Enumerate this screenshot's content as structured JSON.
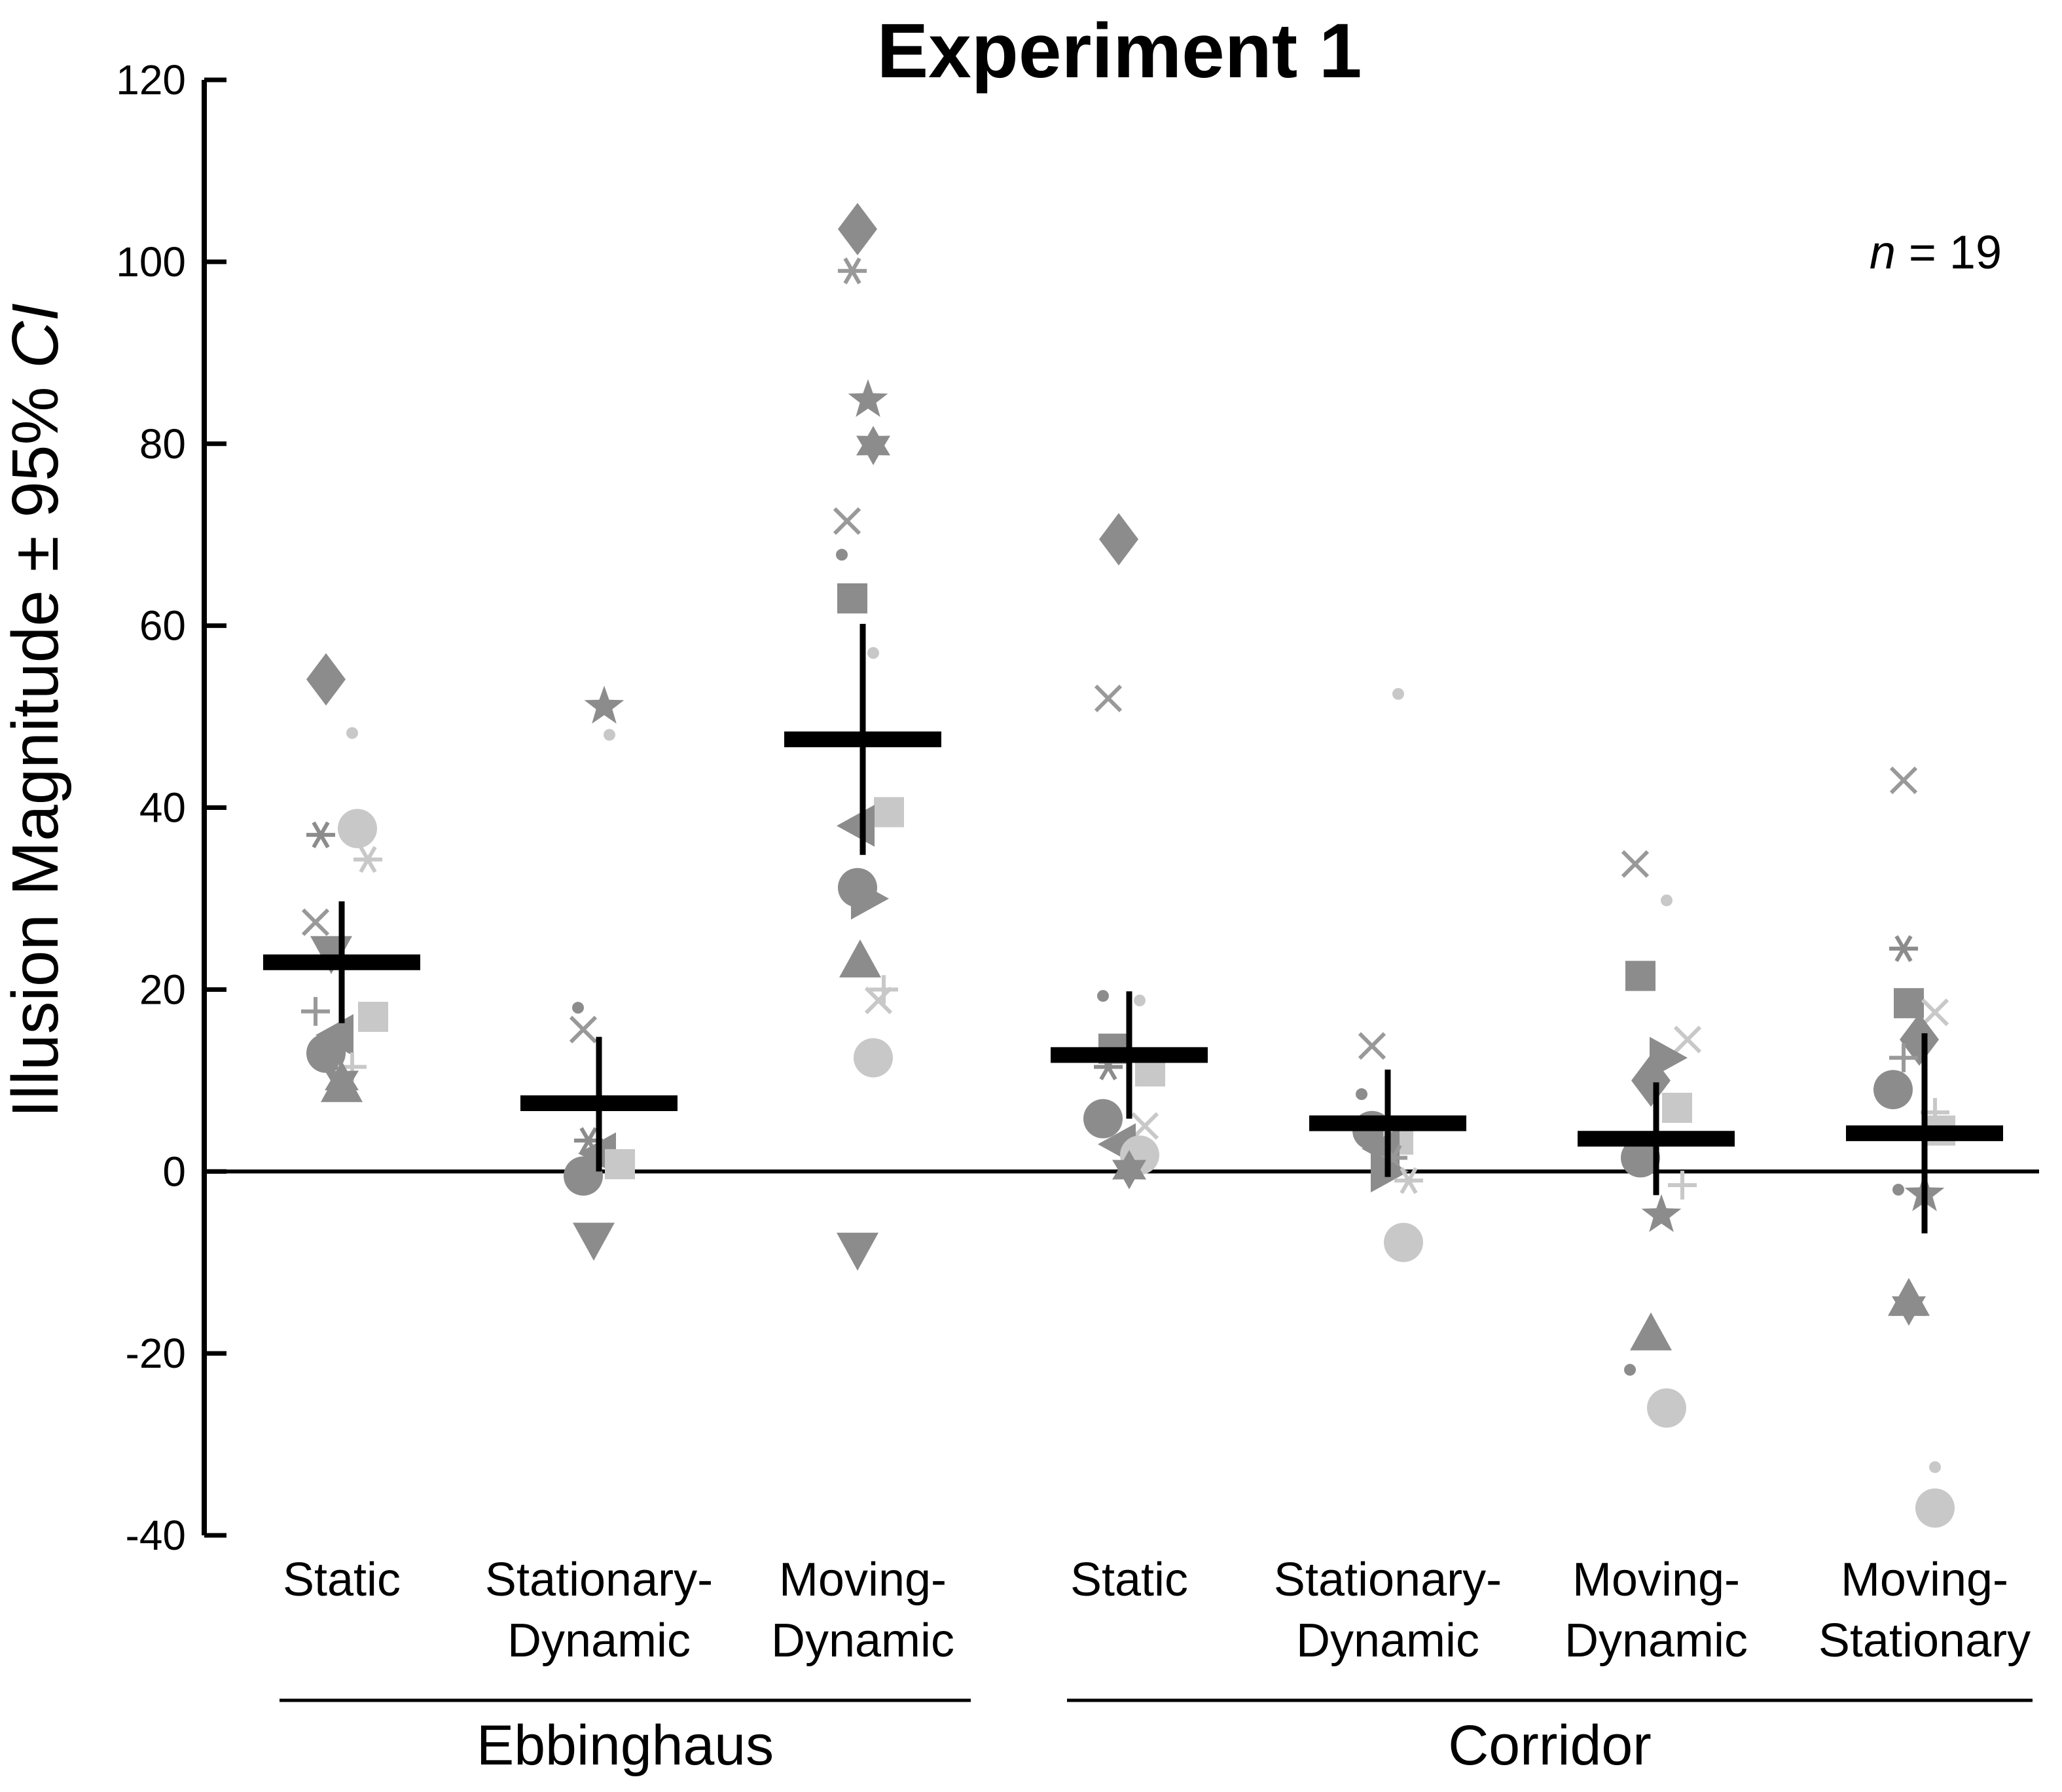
{
  "chart_data": {
    "type": "scatter",
    "title": "Experiment 1",
    "ylabel_main": "Illusion Magnitude ± 95% ",
    "ylabel_italic": "CI",
    "xlabel": "",
    "ylim": [
      -40,
      120
    ],
    "yticks": [
      120,
      100,
      80,
      60,
      40,
      20,
      0,
      -20,
      -40
    ],
    "annotation": {
      "prefix": "n",
      "value": " = 19"
    },
    "groups": [
      {
        "name": "Ebbinghaus",
        "categories": [
          0,
          1,
          2
        ]
      },
      {
        "name": "Corridor",
        "categories": [
          3,
          4,
          5,
          6
        ]
      }
    ],
    "categories": [
      {
        "line1": "Static",
        "line2": ""
      },
      {
        "line1": "Stationary-",
        "line2": "Dynamic"
      },
      {
        "line1": "Moving-",
        "line2": "Dynamic"
      },
      {
        "line1": "Static",
        "line2": ""
      },
      {
        "line1": "Stationary-",
        "line2": "Dynamic"
      },
      {
        "line1": "Moving-",
        "line2": "Dynamic"
      },
      {
        "line1": "Moving-",
        "line2": "Stationary"
      }
    ],
    "means": [
      {
        "category": 0,
        "mean": 23.0,
        "ci_low": 16.3,
        "ci_high": 29.7
      },
      {
        "category": 1,
        "mean": 7.5,
        "ci_low": 0.0,
        "ci_high": 14.8
      },
      {
        "category": 2,
        "mean": 47.5,
        "ci_low": 34.8,
        "ci_high": 60.2
      },
      {
        "category": 3,
        "mean": 12.8,
        "ci_low": 5.8,
        "ci_high": 19.8
      },
      {
        "category": 4,
        "mean": 5.3,
        "ci_low": -0.6,
        "ci_high": 11.2
      },
      {
        "category": 5,
        "mean": 3.6,
        "ci_low": -2.6,
        "ci_high": 9.8
      },
      {
        "category": 6,
        "mean": 4.2,
        "ci_low": -6.8,
        "ci_high": 15.2
      }
    ],
    "participants": [
      {
        "category": 0,
        "points": [
          {
            "s": "diamond",
            "v": 54.1,
            "dx": -0.06,
            "tone": "dark"
          },
          {
            "s": "dot",
            "v": 48.2,
            "dx": 0.04,
            "tone": "light"
          },
          {
            "s": "circle",
            "v": 37.7,
            "dx": 0.06,
            "tone": "light"
          },
          {
            "s": "asterisk",
            "v": 37.0,
            "dx": -0.08,
            "tone": "dark"
          },
          {
            "s": "asterisk",
            "v": 34.3,
            "dx": 0.1,
            "tone": "light"
          },
          {
            "s": "x",
            "v": 27.4,
            "dx": -0.1,
            "tone": "mid"
          },
          {
            "s": "triangle-down",
            "v": 24.0,
            "dx": -0.04,
            "tone": "dark"
          },
          {
            "s": "plus",
            "v": 17.6,
            "dx": -0.1,
            "tone": "mid"
          },
          {
            "s": "square",
            "v": 17.0,
            "dx": 0.12,
            "tone": "light"
          },
          {
            "s": "triangle-left",
            "v": 15.0,
            "dx": -0.02,
            "tone": "dark"
          },
          {
            "s": "circle",
            "v": 13.0,
            "dx": -0.06,
            "tone": "dark"
          },
          {
            "s": "plus",
            "v": 11.5,
            "dx": 0.04,
            "tone": "light"
          },
          {
            "s": "hexagram",
            "v": 10.0,
            "dx": 0.0,
            "tone": "dark"
          },
          {
            "s": "triangle-up",
            "v": 9.5,
            "dx": 0.0,
            "tone": "dark"
          }
        ]
      },
      {
        "category": 1,
        "points": [
          {
            "s": "pentagram",
            "v": 51.1,
            "dx": 0.02,
            "tone": "dark"
          },
          {
            "s": "dot",
            "v": 48.0,
            "dx": 0.04,
            "tone": "light"
          },
          {
            "s": "dot",
            "v": 18.0,
            "dx": -0.08,
            "tone": "dark"
          },
          {
            "s": "x",
            "v": 15.6,
            "dx": -0.06,
            "tone": "mid"
          },
          {
            "s": "asterisk",
            "v": 3.4,
            "dx": -0.04,
            "tone": "dark"
          },
          {
            "s": "triangle-left",
            "v": 2.0,
            "dx": 0.0,
            "tone": "dark"
          },
          {
            "s": "square",
            "v": 0.8,
            "dx": 0.08,
            "tone": "light"
          },
          {
            "s": "circle",
            "v": -0.5,
            "dx": -0.06,
            "tone": "dark"
          },
          {
            "s": "triangle-down",
            "v": -7.5,
            "dx": -0.02,
            "tone": "dark"
          }
        ]
      },
      {
        "category": 2,
        "points": [
          {
            "s": "diamond",
            "v": 103.6,
            "dx": -0.02,
            "tone": "dark"
          },
          {
            "s": "asterisk",
            "v": 99.0,
            "dx": -0.04,
            "tone": "mid"
          },
          {
            "s": "pentagram",
            "v": 84.8,
            "dx": 0.02,
            "tone": "dark"
          },
          {
            "s": "hexagram",
            "v": 79.8,
            "dx": 0.04,
            "tone": "dark"
          },
          {
            "s": "x",
            "v": 71.5,
            "dx": -0.06,
            "tone": "mid"
          },
          {
            "s": "dot",
            "v": 67.8,
            "dx": -0.08,
            "tone": "dark"
          },
          {
            "s": "square",
            "v": 63.0,
            "dx": -0.04,
            "tone": "dark"
          },
          {
            "s": "dot",
            "v": 57.0,
            "dx": 0.04,
            "tone": "light"
          },
          {
            "s": "square",
            "v": 39.5,
            "dx": 0.1,
            "tone": "light"
          },
          {
            "s": "triangle-left",
            "v": 38.0,
            "dx": -0.02,
            "tone": "dark"
          },
          {
            "s": "circle",
            "v": 31.2,
            "dx": -0.02,
            "tone": "dark"
          },
          {
            "s": "triangle-right",
            "v": 30.0,
            "dx": 0.02,
            "tone": "dark"
          },
          {
            "s": "triangle-up",
            "v": 23.2,
            "dx": -0.01,
            "tone": "dark"
          },
          {
            "s": "plus",
            "v": 20.0,
            "dx": 0.08,
            "tone": "light"
          },
          {
            "s": "x",
            "v": 18.8,
            "dx": 0.06,
            "tone": "light"
          },
          {
            "s": "circle",
            "v": 12.5,
            "dx": 0.04,
            "tone": "light"
          },
          {
            "s": "triangle-down",
            "v": -8.6,
            "dx": -0.02,
            "tone": "dark"
          }
        ]
      },
      {
        "category": 3,
        "points": [
          {
            "s": "diamond",
            "v": 69.5,
            "dx": -0.04,
            "tone": "dark"
          },
          {
            "s": "x",
            "v": 52.0,
            "dx": -0.08,
            "tone": "mid"
          },
          {
            "s": "dot",
            "v": 19.3,
            "dx": -0.1,
            "tone": "dark"
          },
          {
            "s": "dot",
            "v": 18.8,
            "dx": 0.04,
            "tone": "light"
          },
          {
            "s": "square",
            "v": 13.5,
            "dx": -0.06,
            "tone": "dark"
          },
          {
            "s": "asterisk",
            "v": 11.5,
            "dx": -0.08,
            "tone": "dark"
          },
          {
            "s": "square",
            "v": 11.0,
            "dx": 0.08,
            "tone": "light"
          },
          {
            "s": "circle",
            "v": 5.8,
            "dx": -0.1,
            "tone": "dark"
          },
          {
            "s": "x",
            "v": 5.0,
            "dx": 0.06,
            "tone": "light"
          },
          {
            "s": "triangle-left",
            "v": 3.0,
            "dx": -0.04,
            "tone": "dark"
          },
          {
            "s": "circle",
            "v": 1.8,
            "dx": 0.04,
            "tone": "light"
          },
          {
            "s": "hexagram",
            "v": 0.2,
            "dx": 0.0,
            "tone": "dark"
          }
        ]
      },
      {
        "category": 4,
        "points": [
          {
            "s": "dot",
            "v": 52.5,
            "dx": 0.04,
            "tone": "light"
          },
          {
            "s": "x",
            "v": 13.8,
            "dx": -0.06,
            "tone": "mid"
          },
          {
            "s": "dot",
            "v": 8.5,
            "dx": -0.1,
            "tone": "dark"
          },
          {
            "s": "circle",
            "v": 4.5,
            "dx": -0.06,
            "tone": "dark"
          },
          {
            "s": "square",
            "v": 3.5,
            "dx": 0.04,
            "tone": "light"
          },
          {
            "s": "triangle-left",
            "v": 2.5,
            "dx": -0.02,
            "tone": "dark"
          },
          {
            "s": "asterisk",
            "v": 1.5,
            "dx": 0.02,
            "tone": "mid"
          },
          {
            "s": "triangle-right",
            "v": 0.0,
            "dx": 0.0,
            "tone": "dark"
          },
          {
            "s": "asterisk",
            "v": -1.0,
            "dx": 0.08,
            "tone": "light"
          },
          {
            "s": "circle",
            "v": -7.8,
            "dx": 0.06,
            "tone": "light"
          }
        ]
      },
      {
        "category": 5,
        "points": [
          {
            "s": "x",
            "v": 33.8,
            "dx": -0.08,
            "tone": "mid"
          },
          {
            "s": "dot",
            "v": 29.8,
            "dx": 0.04,
            "tone": "light"
          },
          {
            "s": "square",
            "v": 21.5,
            "dx": -0.06,
            "tone": "dark"
          },
          {
            "s": "x",
            "v": 14.5,
            "dx": 0.12,
            "tone": "light"
          },
          {
            "s": "triangle-right",
            "v": 12.5,
            "dx": 0.04,
            "tone": "dark"
          },
          {
            "s": "diamond",
            "v": 10.0,
            "dx": -0.02,
            "tone": "dark"
          },
          {
            "s": "square",
            "v": 7.0,
            "dx": 0.08,
            "tone": "light"
          },
          {
            "s": "circle",
            "v": 1.5,
            "dx": -0.06,
            "tone": "dark"
          },
          {
            "s": "plus",
            "v": -1.5,
            "dx": 0.1,
            "tone": "light"
          },
          {
            "s": "pentagram",
            "v": -4.8,
            "dx": 0.02,
            "tone": "dark"
          },
          {
            "s": "triangle-up",
            "v": -17.8,
            "dx": -0.02,
            "tone": "dark"
          },
          {
            "s": "dot",
            "v": -21.8,
            "dx": -0.1,
            "tone": "dark"
          },
          {
            "s": "circle",
            "v": -26.0,
            "dx": 0.04,
            "tone": "light"
          }
        ]
      },
      {
        "category": 6,
        "points": [
          {
            "s": "x",
            "v": 43.0,
            "dx": -0.08,
            "tone": "mid"
          },
          {
            "s": "asterisk",
            "v": 24.5,
            "dx": -0.08,
            "tone": "dark"
          },
          {
            "s": "square",
            "v": 18.5,
            "dx": -0.06,
            "tone": "dark"
          },
          {
            "s": "x",
            "v": 17.5,
            "dx": 0.04,
            "tone": "light"
          },
          {
            "s": "diamond",
            "v": 14.5,
            "dx": -0.02,
            "tone": "dark"
          },
          {
            "s": "plus",
            "v": 12.5,
            "dx": -0.08,
            "tone": "mid"
          },
          {
            "s": "circle",
            "v": 9.0,
            "dx": -0.12,
            "tone": "dark"
          },
          {
            "s": "plus",
            "v": 6.5,
            "dx": 0.04,
            "tone": "light"
          },
          {
            "s": "square",
            "v": 4.5,
            "dx": 0.06,
            "tone": "light"
          },
          {
            "s": "dot",
            "v": -2.0,
            "dx": -0.1,
            "tone": "dark"
          },
          {
            "s": "pentagram",
            "v": -2.5,
            "dx": 0.0,
            "tone": "dark"
          },
          {
            "s": "triangle-up",
            "v": -14.0,
            "dx": -0.06,
            "tone": "dark"
          },
          {
            "s": "hexagram",
            "v": -14.8,
            "dx": -0.06,
            "tone": "dark"
          },
          {
            "s": "dot",
            "v": -32.5,
            "dx": 0.04,
            "tone": "light"
          },
          {
            "s": "circle",
            "v": -37.0,
            "dx": 0.04,
            "tone": "light"
          }
        ]
      }
    ],
    "colors": {
      "dark": "#8c8c8c",
      "mid": "#999999",
      "light": "#c8c8c8",
      "ink": "#000000"
    }
  }
}
